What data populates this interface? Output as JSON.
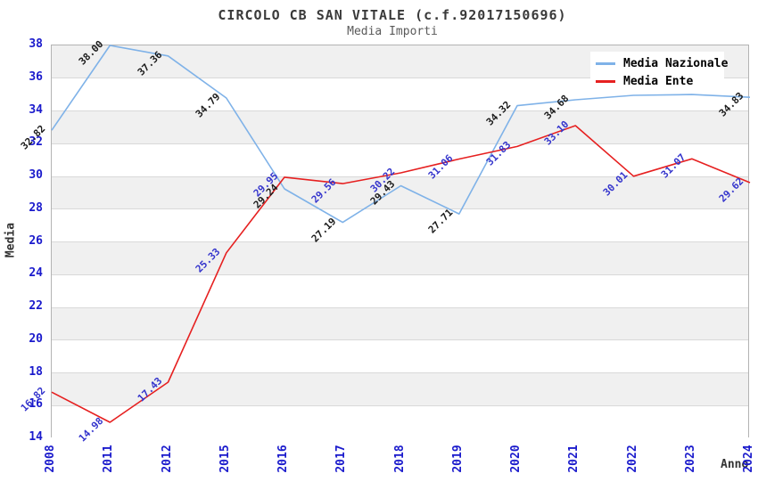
{
  "chart_data": {
    "type": "line",
    "title": "CIRCOLO CB SAN VITALE (c.f.92017150696)",
    "subtitle": "Media Importi",
    "xlabel": "Anno",
    "ylabel": "Media",
    "ylim": [
      14,
      38
    ],
    "yticks": [
      14,
      16,
      18,
      20,
      22,
      24,
      26,
      28,
      30,
      32,
      34,
      36,
      38
    ],
    "categories": [
      "2008",
      "2011",
      "2012",
      "2015",
      "2016",
      "2017",
      "2018",
      "2019",
      "2020",
      "2021",
      "2022",
      "2023",
      "2024"
    ],
    "series": [
      {
        "name": "Media Nazionale",
        "color": "#7fb2e8",
        "label_color": "#1b1b1b",
        "values": [
          32.82,
          38.0,
          37.36,
          34.79,
          29.24,
          27.19,
          29.43,
          27.71,
          34.32,
          34.68,
          34.95,
          35.0,
          34.83
        ],
        "labels": [
          "32.82",
          "38.00",
          "37.36",
          "34.79",
          "29.24",
          "27.19",
          "29.43",
          "27.71",
          "34.32",
          "34.68",
          "",
          "",
          "34.83"
        ]
      },
      {
        "name": "Media Ente",
        "color": "#e62020",
        "label_color": "#3434cc",
        "values": [
          16.82,
          14.98,
          17.43,
          25.33,
          29.95,
          29.56,
          30.22,
          31.06,
          31.83,
          33.1,
          30.01,
          31.07,
          29.62
        ],
        "labels": [
          "16.82",
          "14.98",
          "17.43",
          "25.33",
          "29.95",
          "29.56",
          "30.22",
          "31.06",
          "31.83",
          "33.10",
          "30.01",
          "31.07",
          "29.62"
        ]
      }
    ],
    "legend_position": "top-right",
    "grid": "horizontal",
    "banding": "alternating 2-unit gray/white bands",
    "styles": {
      "background": "#ffffff",
      "band_fill": "#f0f0f0",
      "grid_color": "#d9d9d9",
      "plot_border": "#b3b3b3",
      "axis_tick_color": "#1a1acc",
      "title_color": "#3a3a3a",
      "subtitle_color": "#5a5a5a",
      "axis_title_color": "#333333"
    }
  }
}
